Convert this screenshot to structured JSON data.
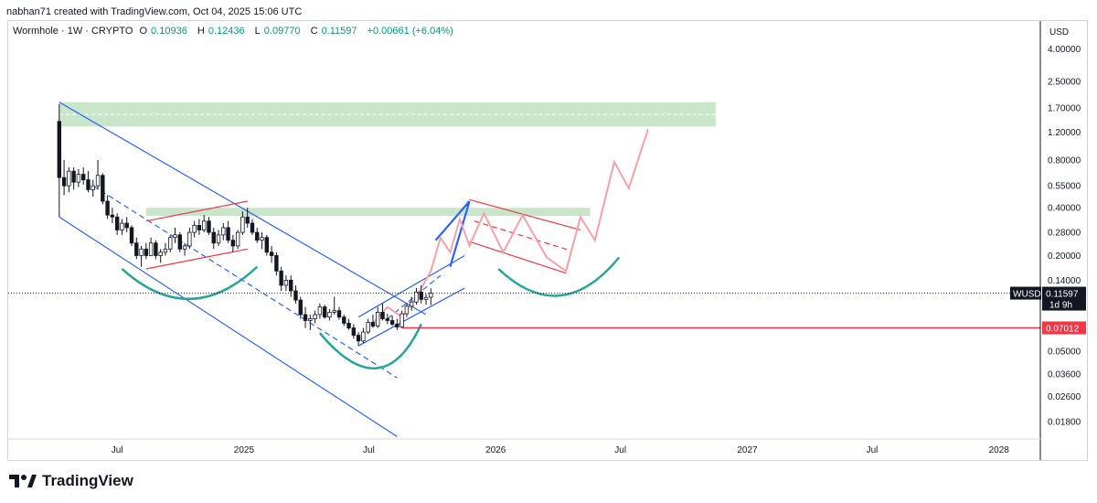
{
  "header": {
    "credit": "nabhan71 created with TradingView.com, Oct 04, 2025 15:06 UTC"
  },
  "legend": {
    "symbol": "Wormhole · 1W · CRYPTO",
    "open_label": "O",
    "open": "0.10936",
    "high_label": "H",
    "high": "0.12436",
    "low_label": "L",
    "low": "0.09770",
    "close_label": "C",
    "close": "0.11597",
    "change": "+0.00661 (+6.04%)"
  },
  "colors": {
    "up": "#089981",
    "down": "#131722",
    "channel": "#2962ff",
    "zone": "#a5d6a7",
    "flag": "#f23645",
    "cup": "#26a69a",
    "projection": "#f7a1a8",
    "support": "#f23645"
  },
  "brand": {
    "name": "TradingView",
    "icon": "tradingview-logo-icon"
  },
  "chart_data": {
    "type": "candlestick",
    "currency": "USD",
    "y_scale": "log",
    "ylim": [
      0.014,
      6.0
    ],
    "y_ticks": [
      "4.00000",
      "2.50000",
      "1.70000",
      "1.20000",
      "0.80000",
      "0.55000",
      "0.40000",
      "0.28000",
      "0.20000",
      "0.14000",
      "0.05000",
      "0.03600",
      "0.02600",
      "0.01800"
    ],
    "x_ticks": [
      {
        "label": "Jul",
        "date": "2024-07-01"
      },
      {
        "label": "2025",
        "date": "2025-01-01"
      },
      {
        "label": "Jul",
        "date": "2025-07-01"
      },
      {
        "label": "2026",
        "date": "2026-01-01"
      },
      {
        "label": "Jul",
        "date": "2026-07-01"
      },
      {
        "label": "2027",
        "date": "2027-01-01"
      },
      {
        "label": "Jul",
        "date": "2027-07-01"
      },
      {
        "label": "2028",
        "date": "2028-01-01"
      }
    ],
    "xlim": [
      "2024-01-25",
      "2028-03-01"
    ],
    "last_price": {
      "symbol": "WUSD",
      "value": "0.11597",
      "countdown": "1d 9h"
    },
    "support_level": {
      "value": "0.07012",
      "from": "2025-08-18"
    },
    "candles": [
      {
        "t": "2024-04-08",
        "o": 1.4,
        "h": 1.8,
        "l": 0.35,
        "c": 0.62
      },
      {
        "t": "2024-04-15",
        "o": 0.62,
        "h": 0.8,
        "l": 0.48,
        "c": 0.55
      },
      {
        "t": "2024-04-22",
        "o": 0.55,
        "h": 0.72,
        "l": 0.5,
        "c": 0.68
      },
      {
        "t": "2024-04-29",
        "o": 0.68,
        "h": 0.72,
        "l": 0.52,
        "c": 0.58
      },
      {
        "t": "2024-05-06",
        "o": 0.58,
        "h": 0.7,
        "l": 0.54,
        "c": 0.65
      },
      {
        "t": "2024-05-13",
        "o": 0.65,
        "h": 0.72,
        "l": 0.56,
        "c": 0.6
      },
      {
        "t": "2024-05-20",
        "o": 0.6,
        "h": 0.68,
        "l": 0.5,
        "c": 0.52
      },
      {
        "t": "2024-05-27",
        "o": 0.52,
        "h": 0.6,
        "l": 0.47,
        "c": 0.55
      },
      {
        "t": "2024-06-03",
        "o": 0.55,
        "h": 0.8,
        "l": 0.52,
        "c": 0.64
      },
      {
        "t": "2024-06-10",
        "o": 0.64,
        "h": 0.66,
        "l": 0.42,
        "c": 0.44
      },
      {
        "t": "2024-06-17",
        "o": 0.44,
        "h": 0.48,
        "l": 0.34,
        "c": 0.36
      },
      {
        "t": "2024-06-24",
        "o": 0.36,
        "h": 0.4,
        "l": 0.32,
        "c": 0.35
      },
      {
        "t": "2024-07-01",
        "o": 0.35,
        "h": 0.37,
        "l": 0.27,
        "c": 0.29
      },
      {
        "t": "2024-07-08",
        "o": 0.29,
        "h": 0.34,
        "l": 0.27,
        "c": 0.32
      },
      {
        "t": "2024-07-15",
        "o": 0.32,
        "h": 0.35,
        "l": 0.28,
        "c": 0.3
      },
      {
        "t": "2024-07-22",
        "o": 0.3,
        "h": 0.31,
        "l": 0.23,
        "c": 0.24
      },
      {
        "t": "2024-07-29",
        "o": 0.24,
        "h": 0.26,
        "l": 0.19,
        "c": 0.2
      },
      {
        "t": "2024-08-05",
        "o": 0.2,
        "h": 0.23,
        "l": 0.17,
        "c": 0.22
      },
      {
        "t": "2024-08-12",
        "o": 0.22,
        "h": 0.24,
        "l": 0.19,
        "c": 0.2
      },
      {
        "t": "2024-08-19",
        "o": 0.2,
        "h": 0.26,
        "l": 0.2,
        "c": 0.24
      },
      {
        "t": "2024-08-26",
        "o": 0.24,
        "h": 0.25,
        "l": 0.19,
        "c": 0.2
      },
      {
        "t": "2024-09-02",
        "o": 0.2,
        "h": 0.22,
        "l": 0.18,
        "c": 0.21
      },
      {
        "t": "2024-09-09",
        "o": 0.21,
        "h": 0.24,
        "l": 0.2,
        "c": 0.22
      },
      {
        "t": "2024-09-16",
        "o": 0.22,
        "h": 0.27,
        "l": 0.21,
        "c": 0.26
      },
      {
        "t": "2024-09-23",
        "o": 0.26,
        "h": 0.3,
        "l": 0.24,
        "c": 0.27
      },
      {
        "t": "2024-09-30",
        "o": 0.27,
        "h": 0.28,
        "l": 0.21,
        "c": 0.22
      },
      {
        "t": "2024-10-07",
        "o": 0.22,
        "h": 0.24,
        "l": 0.2,
        "c": 0.23
      },
      {
        "t": "2024-10-14",
        "o": 0.23,
        "h": 0.3,
        "l": 0.22,
        "c": 0.28
      },
      {
        "t": "2024-10-21",
        "o": 0.28,
        "h": 0.33,
        "l": 0.26,
        "c": 0.31
      },
      {
        "t": "2024-10-28",
        "o": 0.31,
        "h": 0.34,
        "l": 0.27,
        "c": 0.29
      },
      {
        "t": "2024-11-04",
        "o": 0.29,
        "h": 0.36,
        "l": 0.28,
        "c": 0.33
      },
      {
        "t": "2024-11-11",
        "o": 0.33,
        "h": 0.35,
        "l": 0.27,
        "c": 0.28
      },
      {
        "t": "2024-11-18",
        "o": 0.28,
        "h": 0.3,
        "l": 0.22,
        "c": 0.24
      },
      {
        "t": "2024-11-25",
        "o": 0.24,
        "h": 0.29,
        "l": 0.23,
        "c": 0.27
      },
      {
        "t": "2024-12-02",
        "o": 0.27,
        "h": 0.32,
        "l": 0.25,
        "c": 0.3
      },
      {
        "t": "2024-12-09",
        "o": 0.3,
        "h": 0.33,
        "l": 0.24,
        "c": 0.25
      },
      {
        "t": "2024-12-16",
        "o": 0.25,
        "h": 0.27,
        "l": 0.21,
        "c": 0.23
      },
      {
        "t": "2024-12-23",
        "o": 0.23,
        "h": 0.29,
        "l": 0.22,
        "c": 0.28
      },
      {
        "t": "2024-12-30",
        "o": 0.28,
        "h": 0.38,
        "l": 0.27,
        "c": 0.35
      },
      {
        "t": "2025-01-06",
        "o": 0.35,
        "h": 0.4,
        "l": 0.3,
        "c": 0.32
      },
      {
        "t": "2025-01-13",
        "o": 0.32,
        "h": 0.34,
        "l": 0.27,
        "c": 0.28
      },
      {
        "t": "2025-01-20",
        "o": 0.28,
        "h": 0.3,
        "l": 0.24,
        "c": 0.25
      },
      {
        "t": "2025-01-27",
        "o": 0.25,
        "h": 0.28,
        "l": 0.22,
        "c": 0.26
      },
      {
        "t": "2025-02-03",
        "o": 0.26,
        "h": 0.27,
        "l": 0.2,
        "c": 0.21
      },
      {
        "t": "2025-02-10",
        "o": 0.21,
        "h": 0.23,
        "l": 0.18,
        "c": 0.2
      },
      {
        "t": "2025-02-17",
        "o": 0.2,
        "h": 0.21,
        "l": 0.15,
        "c": 0.16
      },
      {
        "t": "2025-02-24",
        "o": 0.16,
        "h": 0.17,
        "l": 0.12,
        "c": 0.13
      },
      {
        "t": "2025-03-03",
        "o": 0.13,
        "h": 0.15,
        "l": 0.12,
        "c": 0.14
      },
      {
        "t": "2025-03-10",
        "o": 0.14,
        "h": 0.15,
        "l": 0.11,
        "c": 0.12
      },
      {
        "t": "2025-03-17",
        "o": 0.12,
        "h": 0.13,
        "l": 0.1,
        "c": 0.105
      },
      {
        "t": "2025-03-24",
        "o": 0.105,
        "h": 0.11,
        "l": 0.08,
        "c": 0.085
      },
      {
        "t": "2025-03-31",
        "o": 0.085,
        "h": 0.095,
        "l": 0.07,
        "c": 0.078
      },
      {
        "t": "2025-04-07",
        "o": 0.078,
        "h": 0.085,
        "l": 0.068,
        "c": 0.08
      },
      {
        "t": "2025-04-14",
        "o": 0.08,
        "h": 0.09,
        "l": 0.075,
        "c": 0.085
      },
      {
        "t": "2025-04-21",
        "o": 0.085,
        "h": 0.1,
        "l": 0.08,
        "c": 0.095
      },
      {
        "t": "2025-04-28",
        "o": 0.095,
        "h": 0.098,
        "l": 0.08,
        "c": 0.082
      },
      {
        "t": "2025-05-05",
        "o": 0.082,
        "h": 0.092,
        "l": 0.078,
        "c": 0.088
      },
      {
        "t": "2025-05-12",
        "o": 0.088,
        "h": 0.11,
        "l": 0.085,
        "c": 0.09
      },
      {
        "t": "2025-05-19",
        "o": 0.09,
        "h": 0.095,
        "l": 0.079,
        "c": 0.082
      },
      {
        "t": "2025-05-26",
        "o": 0.082,
        "h": 0.085,
        "l": 0.072,
        "c": 0.075
      },
      {
        "t": "2025-06-02",
        "o": 0.075,
        "h": 0.08,
        "l": 0.068,
        "c": 0.07
      },
      {
        "t": "2025-06-09",
        "o": 0.07,
        "h": 0.074,
        "l": 0.06,
        "c": 0.063
      },
      {
        "t": "2025-06-16",
        "o": 0.063,
        "h": 0.066,
        "l": 0.054,
        "c": 0.058
      },
      {
        "t": "2025-06-23",
        "o": 0.058,
        "h": 0.07,
        "l": 0.056,
        "c": 0.066
      },
      {
        "t": "2025-06-30",
        "o": 0.066,
        "h": 0.08,
        "l": 0.064,
        "c": 0.076
      },
      {
        "t": "2025-07-07",
        "o": 0.076,
        "h": 0.085,
        "l": 0.07,
        "c": 0.072
      },
      {
        "t": "2025-07-14",
        "o": 0.072,
        "h": 0.095,
        "l": 0.07,
        "c": 0.088
      },
      {
        "t": "2025-07-21",
        "o": 0.088,
        "h": 0.1,
        "l": 0.078,
        "c": 0.08
      },
      {
        "t": "2025-07-28",
        "o": 0.08,
        "h": 0.086,
        "l": 0.074,
        "c": 0.078
      },
      {
        "t": "2025-08-04",
        "o": 0.078,
        "h": 0.084,
        "l": 0.072,
        "c": 0.074
      },
      {
        "t": "2025-08-11",
        "o": 0.074,
        "h": 0.08,
        "l": 0.068,
        "c": 0.071
      },
      {
        "t": "2025-08-18",
        "o": 0.071,
        "h": 0.09,
        "l": 0.07,
        "c": 0.086
      },
      {
        "t": "2025-08-25",
        "o": 0.086,
        "h": 0.1,
        "l": 0.082,
        "c": 0.096
      },
      {
        "t": "2025-09-01",
        "o": 0.096,
        "h": 0.11,
        "l": 0.09,
        "c": 0.102
      },
      {
        "t": "2025-09-08",
        "o": 0.102,
        "h": 0.125,
        "l": 0.098,
        "c": 0.118
      },
      {
        "t": "2025-09-15",
        "o": 0.118,
        "h": 0.13,
        "l": 0.1,
        "c": 0.106
      },
      {
        "t": "2025-09-22",
        "o": 0.106,
        "h": 0.115,
        "l": 0.098,
        "c": 0.109
      },
      {
        "t": "2025-09-29",
        "o": 0.10936,
        "h": 0.12436,
        "l": 0.0977,
        "c": 0.11597
      }
    ]
  }
}
